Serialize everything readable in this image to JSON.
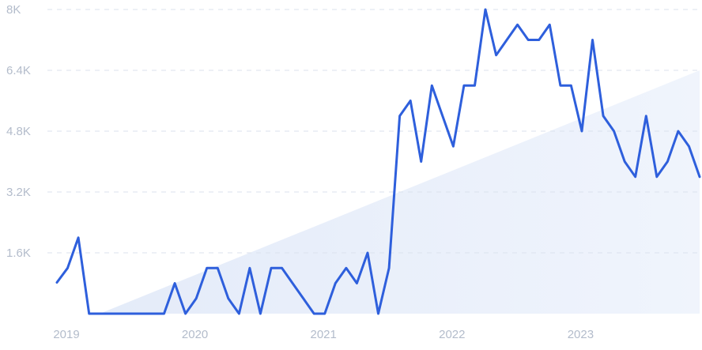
{
  "chart_data": {
    "type": "line",
    "title": "",
    "xlabel": "",
    "ylabel": "",
    "ylim": [
      0,
      8000
    ],
    "y_ticks": [
      {
        "value": 1600,
        "label": "1.6K"
      },
      {
        "value": 3200,
        "label": "3.2K"
      },
      {
        "value": 4800,
        "label": "4.8K"
      },
      {
        "value": 6400,
        "label": "6.4K"
      },
      {
        "value": 8000,
        "label": "8K"
      }
    ],
    "x_ticks": [
      {
        "value": "2019-01",
        "label": "2019"
      },
      {
        "value": "2020-01",
        "label": "2020"
      },
      {
        "value": "2021-01",
        "label": "2021"
      },
      {
        "value": "2022-01",
        "label": "2022"
      },
      {
        "value": "2023-01",
        "label": "2023"
      }
    ],
    "grid": true,
    "legend": "none",
    "series": [
      {
        "color": "#2e5fdc",
        "points": [
          {
            "x": "2019-01",
            "y": 820
          },
          {
            "x": "2019-02",
            "y": 1200
          },
          {
            "x": "2019-03",
            "y": 2000
          },
          {
            "x": "2019-04",
            "y": 0
          },
          {
            "x": "2019-05",
            "y": 0
          },
          {
            "x": "2019-06",
            "y": 0
          },
          {
            "x": "2019-07",
            "y": 0
          },
          {
            "x": "2019-08",
            "y": 0
          },
          {
            "x": "2019-09",
            "y": 0
          },
          {
            "x": "2019-10",
            "y": 0
          },
          {
            "x": "2019-11",
            "y": 0
          },
          {
            "x": "2019-12",
            "y": 800
          },
          {
            "x": "2020-01",
            "y": 0
          },
          {
            "x": "2020-02",
            "y": 400
          },
          {
            "x": "2020-03",
            "y": 1200
          },
          {
            "x": "2020-04",
            "y": 1200
          },
          {
            "x": "2020-05",
            "y": 400
          },
          {
            "x": "2020-06",
            "y": 0
          },
          {
            "x": "2020-07",
            "y": 1200
          },
          {
            "x": "2020-08",
            "y": 0
          },
          {
            "x": "2020-09",
            "y": 1200
          },
          {
            "x": "2020-10",
            "y": 1200
          },
          {
            "x": "2020-11",
            "y": 800
          },
          {
            "x": "2020-12",
            "y": 400
          },
          {
            "x": "2021-01",
            "y": 0
          },
          {
            "x": "2021-02",
            "y": 0
          },
          {
            "x": "2021-03",
            "y": 800
          },
          {
            "x": "2021-04",
            "y": 1200
          },
          {
            "x": "2021-05",
            "y": 800
          },
          {
            "x": "2021-06",
            "y": 1600
          },
          {
            "x": "2021-07",
            "y": 0
          },
          {
            "x": "2021-08",
            "y": 1200
          },
          {
            "x": "2021-09",
            "y": 5200
          },
          {
            "x": "2021-10",
            "y": 5600
          },
          {
            "x": "2021-11",
            "y": 4000
          },
          {
            "x": "2021-12",
            "y": 6000
          },
          {
            "x": "2022-01",
            "y": 5200
          },
          {
            "x": "2022-02",
            "y": 4400
          },
          {
            "x": "2022-03",
            "y": 6000
          },
          {
            "x": "2022-04",
            "y": 6000
          },
          {
            "x": "2022-05",
            "y": 8000
          },
          {
            "x": "2022-06",
            "y": 6800
          },
          {
            "x": "2022-07",
            "y": 7200
          },
          {
            "x": "2022-08",
            "y": 7600
          },
          {
            "x": "2022-09",
            "y": 7200
          },
          {
            "x": "2022-10",
            "y": 7200
          },
          {
            "x": "2022-11",
            "y": 7600
          },
          {
            "x": "2022-12",
            "y": 6000
          },
          {
            "x": "2023-01",
            "y": 6000
          },
          {
            "x": "2023-02",
            "y": 4800
          },
          {
            "x": "2023-03",
            "y": 7200
          },
          {
            "x": "2023-04",
            "y": 5200
          },
          {
            "x": "2023-05",
            "y": 4800
          },
          {
            "x": "2023-06",
            "y": 4000
          },
          {
            "x": "2023-07",
            "y": 3600
          },
          {
            "x": "2023-08",
            "y": 5200
          },
          {
            "x": "2023-09",
            "y": 3600
          },
          {
            "x": "2023-10",
            "y": 4000
          },
          {
            "x": "2023-11",
            "y": 4800
          },
          {
            "x": "2023-12",
            "y": 4400
          },
          {
            "x": "2024-01",
            "y": 3600
          }
        ]
      }
    ],
    "trend": {
      "type": "area",
      "color": "#e4ecfb",
      "start": {
        "x": "2019-05",
        "y": 0
      },
      "end": {
        "x": "2024-01",
        "y": 6400
      }
    }
  }
}
